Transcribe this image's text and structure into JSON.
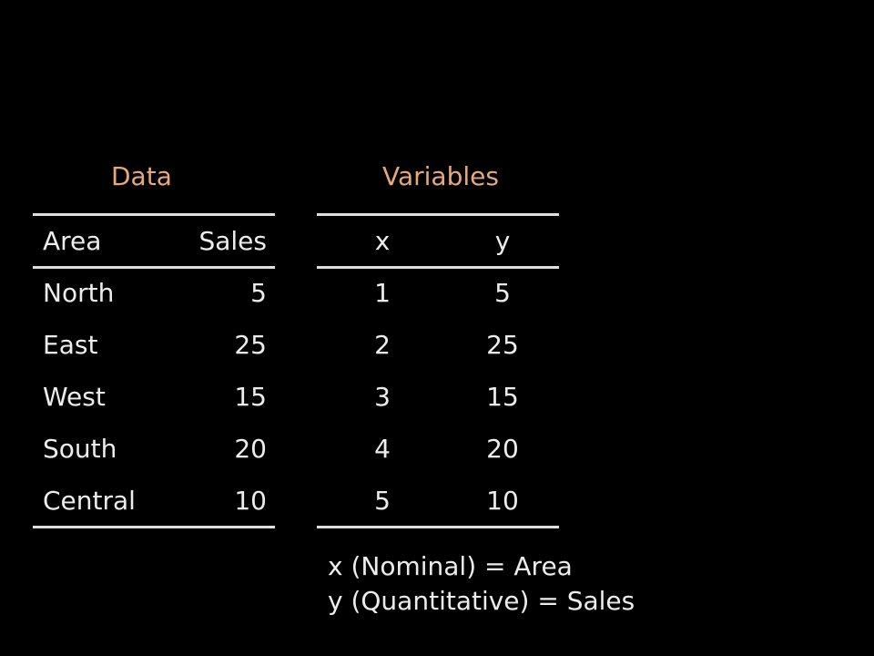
{
  "data_table": {
    "title": "Data",
    "columns": [
      "Area",
      "Sales"
    ],
    "rows": [
      {
        "area": "North",
        "sales": "5"
      },
      {
        "area": "East",
        "sales": "25"
      },
      {
        "area": "West",
        "sales": "15"
      },
      {
        "area": "South",
        "sales": "20"
      },
      {
        "area": "Central",
        "sales": "10"
      }
    ]
  },
  "variables_table": {
    "title": "Variables",
    "columns": [
      "x",
      "y"
    ],
    "rows": [
      {
        "x": "1",
        "y": "5"
      },
      {
        "x": "2",
        "y": "25"
      },
      {
        "x": "3",
        "y": "15"
      },
      {
        "x": "4",
        "y": "20"
      },
      {
        "x": "5",
        "y": "10"
      }
    ]
  },
  "notes": [
    "x (Nominal) = Area",
    "y (Quantitative) = Sales"
  ],
  "colors": {
    "background": "#000000",
    "heading": "#e7a97a",
    "text": "#ececec",
    "rule": "#dedede"
  }
}
